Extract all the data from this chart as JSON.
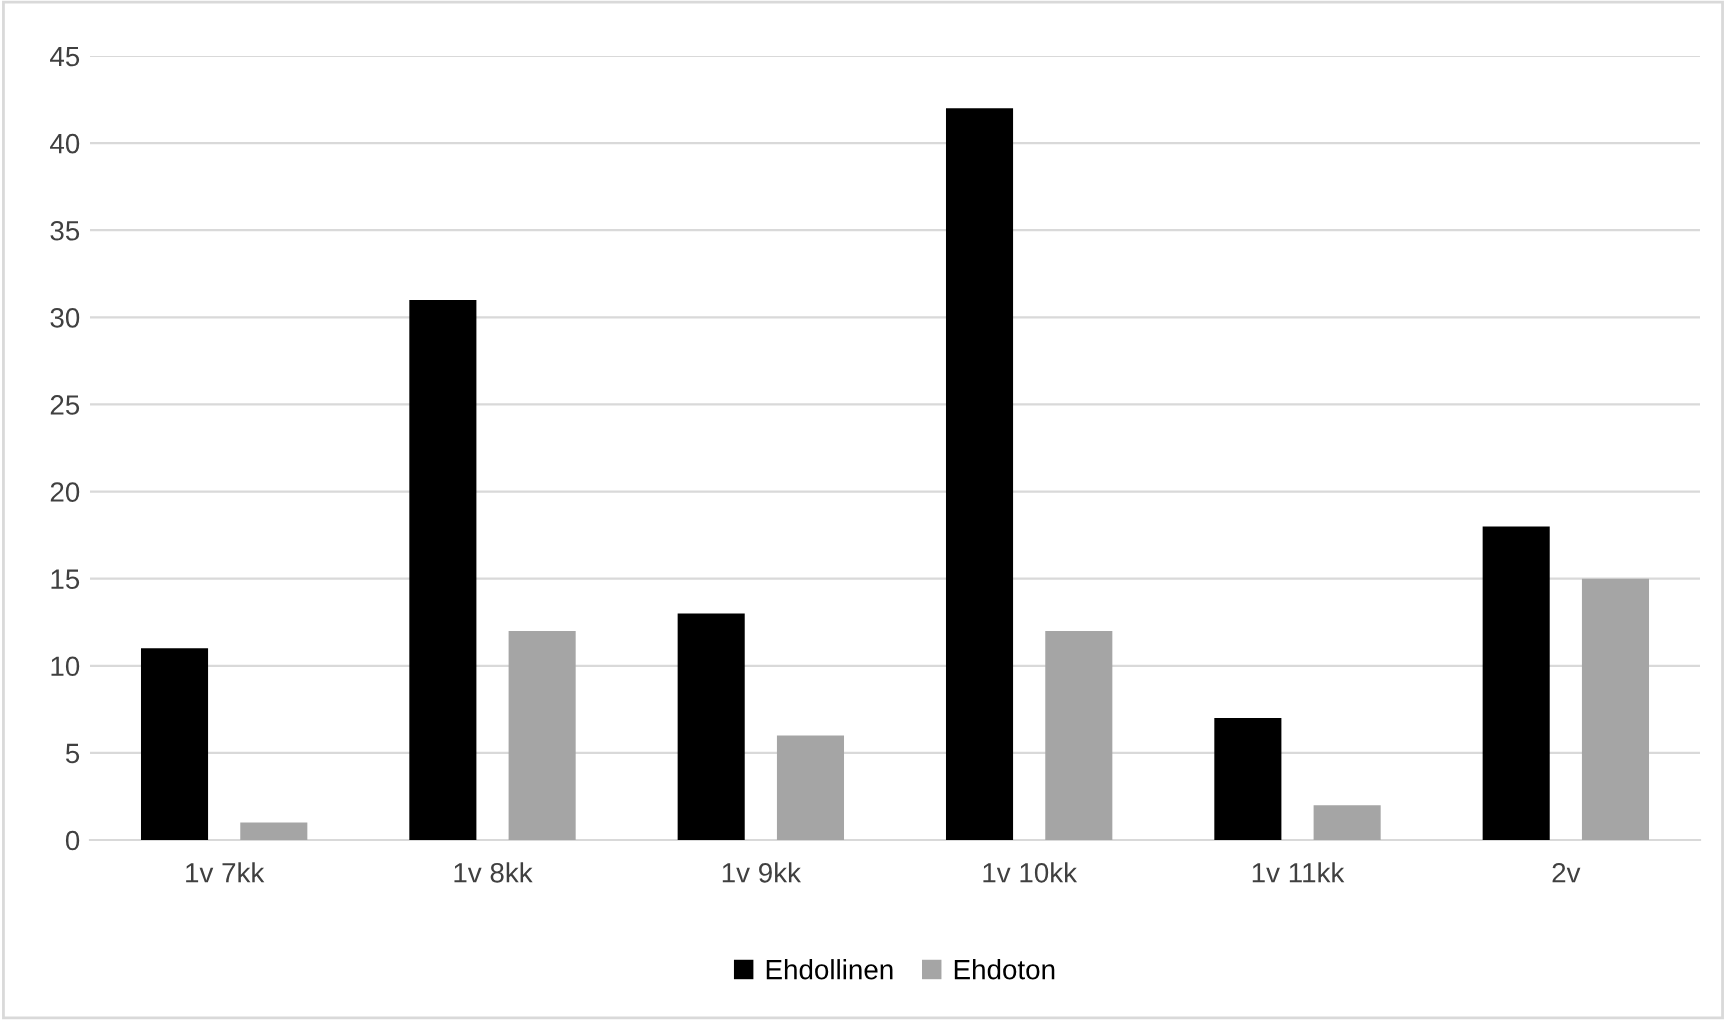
{
  "chart_data": {
    "type": "bar",
    "categories": [
      "1v 7kk",
      "1v 8kk",
      "1v 9kk",
      "1v 10kk",
      "1v 11kk",
      "2v"
    ],
    "series": [
      {
        "name": "Ehdollinen",
        "color": "#000000",
        "values": [
          11,
          31,
          13,
          42,
          7,
          18
        ]
      },
      {
        "name": "Ehdoton",
        "color": "#a5a5a5",
        "values": [
          1,
          12,
          6,
          12,
          2,
          15
        ]
      }
    ],
    "ylim": [
      0,
      45
    ],
    "yticks": [
      0,
      5,
      10,
      15,
      20,
      25,
      30,
      35,
      40,
      45
    ],
    "grid": "y",
    "legend": "bottom"
  }
}
